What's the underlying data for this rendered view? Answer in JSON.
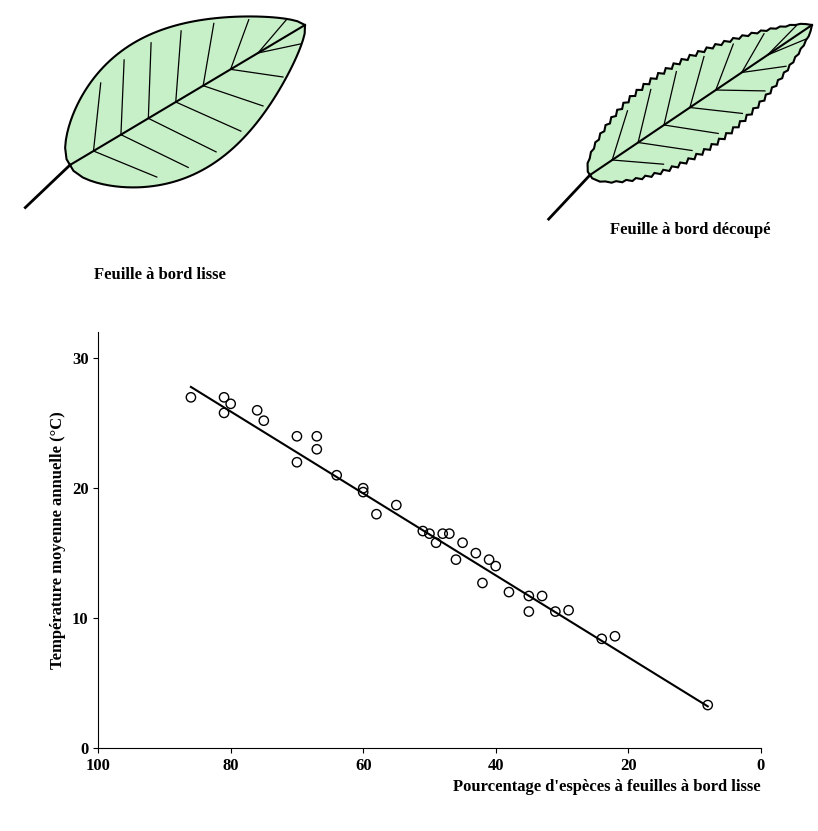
{
  "chart_data": {
    "type": "scatter",
    "x_label": "Pourcentage d'espèces à feuilles à bord lisse",
    "y_label": "Température moyenne annuelle (°C)",
    "xlim": [
      100,
      0
    ],
    "xticks": [
      100,
      80,
      60,
      40,
      20,
      0
    ],
    "ylim": [
      0,
      32
    ],
    "yticks": [
      0,
      10,
      20,
      30
    ],
    "grid": false,
    "series": [
      {
        "type": "scatter",
        "marker": "o",
        "color": "#000000",
        "x": [
          86,
          81,
          81,
          80,
          76,
          75,
          70,
          70,
          67,
          67,
          64,
          60,
          60,
          58,
          55,
          51,
          50,
          49,
          48,
          47,
          46,
          45,
          43,
          42,
          41,
          40,
          38,
          35,
          35,
          33,
          31,
          29,
          24,
          22,
          8
        ],
        "values": [
          27,
          27,
          25.8,
          26.5,
          26,
          25.2,
          24,
          22,
          24,
          23,
          21,
          20,
          19.7,
          18,
          18.7,
          16.7,
          16.5,
          15.8,
          16.5,
          16.5,
          14.5,
          15.8,
          15,
          12.7,
          14.5,
          14,
          12,
          11.7,
          10.5,
          11.7,
          10.5,
          10.6,
          8.4,
          8.6,
          3.3
        ]
      },
      {
        "type": "line",
        "line_style": "solid",
        "color": "#000000",
        "x": [
          86,
          8
        ],
        "values": [
          27.8,
          3.2
        ]
      }
    ]
  },
  "leaves": [
    {
      "label": "Feuille à bord lisse",
      "serrated": false
    },
    {
      "label": "Feuille à bord découpé",
      "serrated": true
    }
  ]
}
